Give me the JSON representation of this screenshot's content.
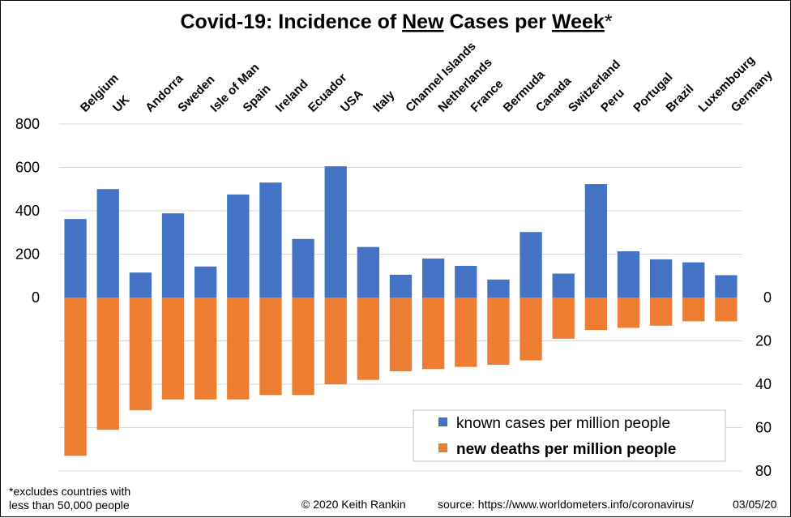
{
  "chart_data": {
    "type": "bar",
    "title_parts": [
      "Covid-19: Incidence of ",
      "New",
      " Cases per ",
      "Week",
      "*"
    ],
    "categories": [
      "Belgium",
      "UK",
      "Andorra",
      "Sweden",
      "Isle of Man",
      "Spain",
      "Ireland",
      "Ecuador",
      "USA",
      "Italy",
      "Channel Islands",
      "Netherlands",
      "France",
      "Bermuda",
      "Canada",
      "Switzerland",
      "Peru",
      "Portugal",
      "Brazil",
      "Luxembourg",
      "Germany"
    ],
    "series": [
      {
        "name": "known cases per million people",
        "axis": "left",
        "color": "#4472C4",
        "values": [
          362,
          500,
          115,
          388,
          143,
          475,
          530,
          270,
          605,
          233,
          105,
          180,
          146,
          83,
          302,
          110,
          523,
          213,
          176,
          162,
          103
        ]
      },
      {
        "name": "new deaths per million people",
        "axis": "right",
        "direction": "down",
        "color": "#ED7D31",
        "values": [
          73,
          61,
          52,
          47,
          47,
          47,
          45,
          45,
          40,
          38,
          34,
          33,
          32,
          31,
          29,
          19,
          15,
          14,
          13,
          11,
          11
        ]
      }
    ],
    "left_axis": {
      "ticks": [
        "800",
        "600",
        "400",
        "200",
        "0"
      ],
      "range": [
        0,
        800
      ]
    },
    "right_axis": {
      "ticks": [
        "0",
        "20",
        "40",
        "60",
        "80"
      ],
      "range": [
        0,
        80
      ]
    },
    "grid": true,
    "legend_position": "bottom-right"
  },
  "footnote": {
    "line1": "*excludes countries with",
    "line2": "less than 50,000 people"
  },
  "credit": "© 2020  Keith Rankin",
  "source": "source:  https://www.worldometers.info/coronavirus/",
  "date": "03/05/20"
}
